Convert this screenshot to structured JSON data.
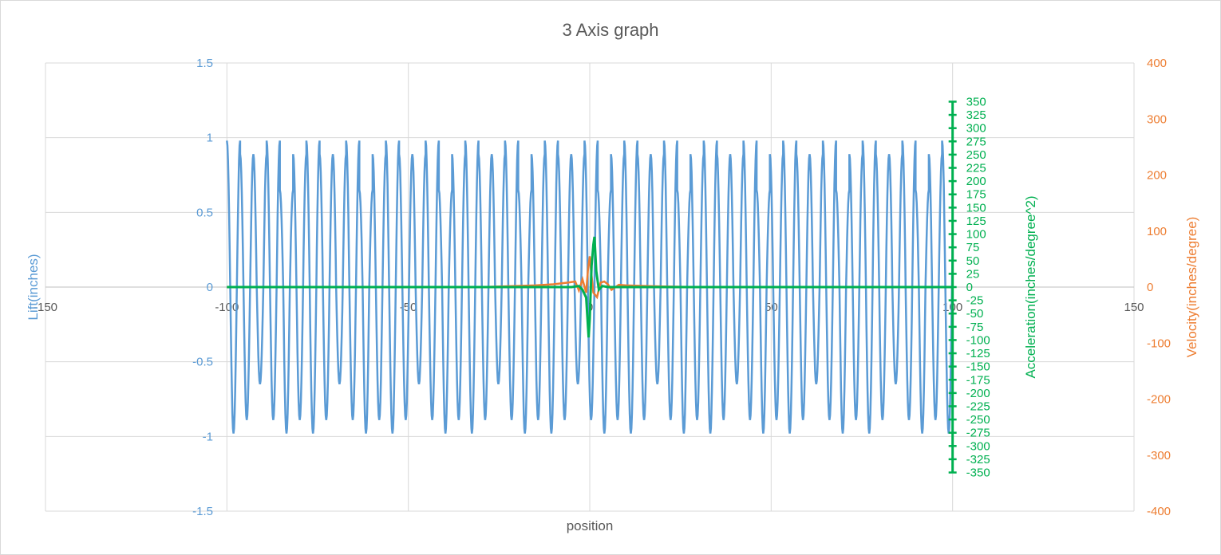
{
  "chart_data": {
    "type": "scatter",
    "title": "3 Axis graph",
    "xlabel": "position",
    "x_axis": {
      "min": -150,
      "max": 150,
      "step": 50,
      "tick_labels": [
        "-150",
        "-100",
        "-50",
        "0",
        "50",
        "100",
        "150"
      ]
    },
    "lift_axis": {
      "title": "Lift(inches)",
      "min": -1.5,
      "max": 1.5,
      "step": 0.5,
      "color": "#5b9bd5",
      "tick_labels": [
        "-1.5",
        "-1",
        "-0.5",
        "0",
        "0.5",
        "1",
        "1.5"
      ]
    },
    "velocity_axis": {
      "title": "Velocity(inches/degree)",
      "min": -400,
      "max": 400,
      "step": 100,
      "color": "#ed7d31",
      "tick_labels": [
        "-400",
        "-300",
        "-200",
        "-100",
        "0",
        "100",
        "200",
        "300",
        "400"
      ]
    },
    "acceleration_axis": {
      "title": "Acceleration(inches/degree^2)",
      "min": -350,
      "max": 350,
      "step": 25,
      "position_x": 100,
      "color": "#00b050",
      "tick_labels": [
        "-350",
        "-325",
        "-300",
        "-275",
        "-250",
        "-225",
        "-200",
        "-175",
        "-150",
        "-125",
        "-100",
        "-75",
        "-50",
        "-25",
        "0",
        "25",
        "50",
        "75",
        "100",
        "125",
        "150",
        "175",
        "200",
        "225",
        "250",
        "275",
        "300",
        "325",
        "350"
      ]
    },
    "grid": true,
    "series": [
      {
        "axis": "lift",
        "color": "#5b9bd5",
        "description_x_range": [
          -100,
          100
        ],
        "peak_pattern": [
          0.98,
          0.89,
          0.89,
          0.98,
          0.65,
          0.89
        ],
        "trough_pattern": [
          -0.98,
          -0.89,
          -0.65,
          -0.89,
          -0.98,
          -0.89
        ],
        "cycle_period": 3.65
      },
      {
        "axis": "velocity",
        "color": "#ed7d31",
        "points": [
          [
            -100,
            0
          ],
          [
            -30,
            0
          ],
          [
            -20,
            2
          ],
          [
            -15,
            3
          ],
          [
            -10,
            5
          ],
          [
            -6,
            8
          ],
          [
            -4,
            10
          ],
          [
            -3,
            -6
          ],
          [
            -2,
            14
          ],
          [
            -1,
            -10
          ],
          [
            -0.5,
            30
          ],
          [
            0,
            55
          ],
          [
            0.5,
            20
          ],
          [
            1,
            -10
          ],
          [
            2,
            -18
          ],
          [
            3,
            8
          ],
          [
            4,
            10
          ],
          [
            5,
            5
          ],
          [
            6,
            -5
          ],
          [
            8,
            4
          ],
          [
            10,
            3
          ],
          [
            15,
            2
          ],
          [
            20,
            1
          ],
          [
            30,
            0
          ],
          [
            100,
            0
          ]
        ]
      },
      {
        "axis": "acceleration",
        "color": "#00b050",
        "points": [
          [
            -100,
            0
          ],
          [
            -5,
            0
          ],
          [
            -3,
            2
          ],
          [
            -2,
            -5
          ],
          [
            -1,
            -20
          ],
          [
            -0.3,
            -95
          ],
          [
            0,
            -60
          ],
          [
            0.5,
            40
          ],
          [
            1,
            80
          ],
          [
            1.3,
            95
          ],
          [
            1.8,
            30
          ],
          [
            2.5,
            -5
          ],
          [
            3.5,
            2
          ],
          [
            5,
            0
          ],
          [
            100,
            0
          ]
        ]
      }
    ]
  }
}
